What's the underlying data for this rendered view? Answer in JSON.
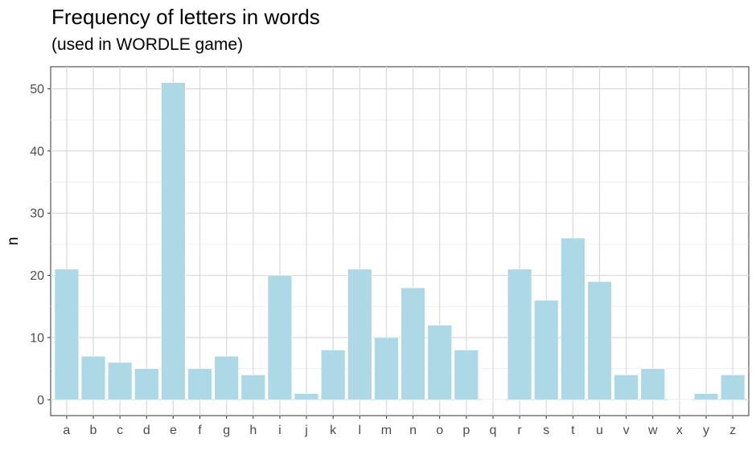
{
  "chart_data": {
    "type": "bar",
    "title": "Frequency of letters in words",
    "subtitle": "(used in WORDLE game)",
    "xlabel": "",
    "ylabel": "n",
    "categories": [
      "a",
      "b",
      "c",
      "d",
      "e",
      "f",
      "g",
      "h",
      "i",
      "j",
      "k",
      "l",
      "m",
      "n",
      "o",
      "p",
      "q",
      "r",
      "s",
      "t",
      "u",
      "v",
      "w",
      "x",
      "y",
      "z"
    ],
    "values": [
      21,
      7,
      6,
      5,
      51,
      5,
      7,
      4,
      20,
      1,
      8,
      21,
      10,
      18,
      12,
      8,
      0,
      21,
      16,
      26,
      19,
      4,
      5,
      0,
      1,
      4
    ],
    "ylim": [
      -2.55,
      53.55
    ],
    "yticks": [
      0,
      10,
      20,
      30,
      40,
      50
    ],
    "grid": true,
    "bar_color": "#ADD8E6"
  }
}
